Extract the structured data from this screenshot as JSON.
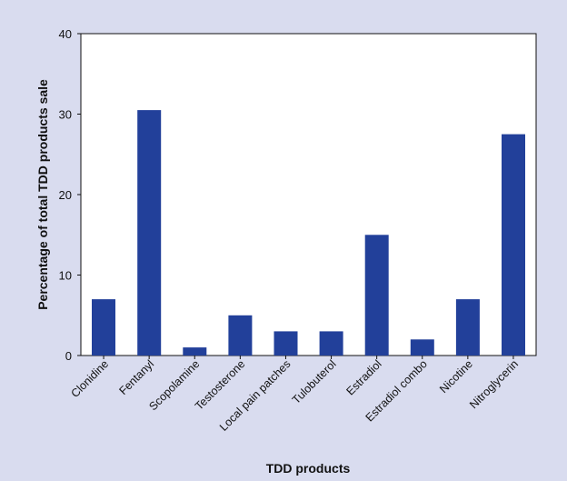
{
  "chart_data": {
    "type": "bar",
    "title": "",
    "xlabel": "TDD products",
    "ylabel": "Percentage of total TDD products sale",
    "ylim": [
      0,
      40
    ],
    "yticks": [
      0,
      10,
      20,
      30,
      40
    ],
    "categories": [
      "Clonidine",
      "Fentanyl",
      "Scopolamine",
      "Testosterone",
      "Local pain patches",
      "Tulobuterol",
      "Estradiol",
      "Estradiol combo",
      "Nicotine",
      "Nitroglycerin"
    ],
    "values": [
      7,
      30.5,
      1,
      5,
      3,
      3,
      15,
      2,
      7,
      27.5
    ],
    "grid": false,
    "colors": {
      "bar": "#22409a",
      "panel": "#d9dcef",
      "plot": "#ffffff",
      "axis": "#111111"
    }
  }
}
